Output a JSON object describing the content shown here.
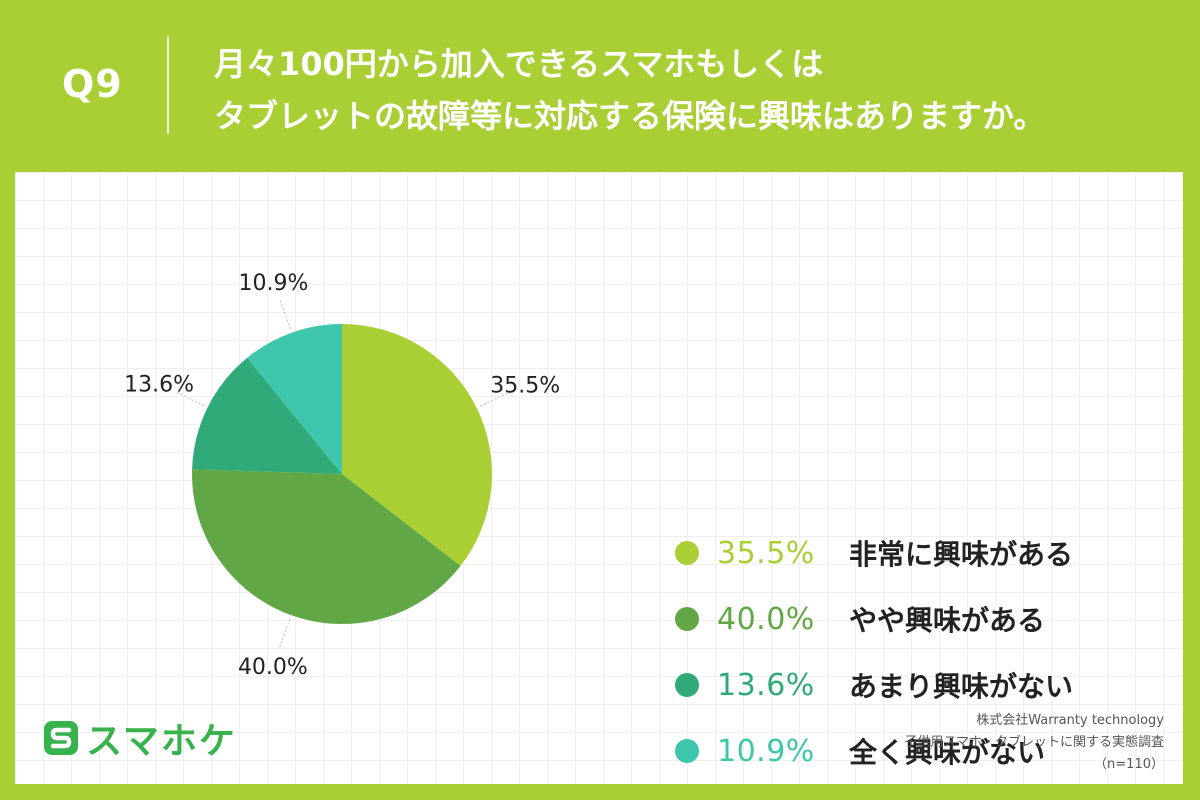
{
  "header": {
    "q_label": "Q9",
    "question_line1": "月々100円から加入できるスマホもしくは",
    "question_line2": "タブレットの故障等に対応する保険に興味はありますか。"
  },
  "chart_data": {
    "type": "pie",
    "title": "",
    "start_angle_deg": 0,
    "direction": "clockwise",
    "slices": [
      {
        "label": "非常に興味がある",
        "value": 35.5,
        "value_label": "35.5%",
        "color": "#a9cf35"
      },
      {
        "label": "やや興味がある",
        "value": 40.0,
        "value_label": "40.0%",
        "color": "#62a745"
      },
      {
        "label": "あまり興味がない",
        "value": 13.6,
        "value_label": "13.6%",
        "color": "#31aa79"
      },
      {
        "label": "全く興味がない",
        "value": 10.9,
        "value_label": "10.9%",
        "color": "#3ec6ac"
      }
    ],
    "legend_placement": "right"
  },
  "legend": [
    {
      "pct": "35.5%",
      "label": "非常に興味がある",
      "color": "#a9cf35"
    },
    {
      "pct": "40.0%",
      "label": "やや興味がある",
      "color": "#62a745"
    },
    {
      "pct": "13.6%",
      "label": "あまり興味がない",
      "color": "#31aa79"
    },
    {
      "pct": "10.9%",
      "label": "全く興味がない",
      "color": "#3ec6ac"
    }
  ],
  "footer": {
    "logo_text": "スマホケ",
    "source_line1": "株式会社Warranty technology",
    "source_line2": "子供用スマホ・タブレットに関する実態調査",
    "source_line3": "（n=110）"
  },
  "colors": {
    "background": "#a9cf35",
    "logo": "#37b24d"
  }
}
